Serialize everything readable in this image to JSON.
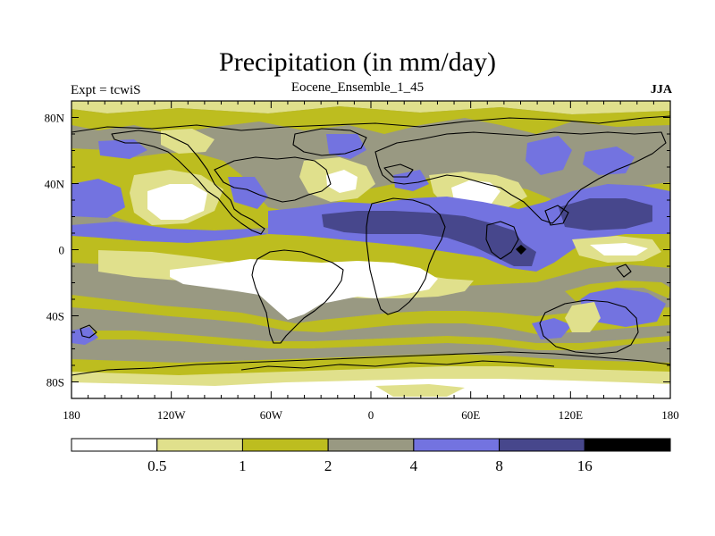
{
  "title": "Precipitation (in mm/day)",
  "left_label": "Expt = tcwiS",
  "center_label": "Eocene_Ensemble_1_45",
  "right_label": "JJA",
  "colors": {
    "lt05": "#ffffff",
    "c05_1": "#e0e08c",
    "c1_2": "#bdbd1f",
    "c2_4": "#999982",
    "c4_8": "#7373e0",
    "c8_16": "#47478c",
    "gt16": "#000000"
  },
  "map": {
    "lon_range": [
      -180,
      180
    ],
    "lat_range": [
      -90,
      90
    ],
    "x_ticks": [
      {
        "lon": -180,
        "label": "180"
      },
      {
        "lon": -120,
        "label": "120W"
      },
      {
        "lon": -60,
        "label": "60W"
      },
      {
        "lon": 0,
        "label": "0"
      },
      {
        "lon": 60,
        "label": "60E"
      },
      {
        "lon": 120,
        "label": "120E"
      },
      {
        "lon": 180,
        "label": "180"
      }
    ],
    "y_ticks": [
      {
        "lat": 80,
        "label": "80N"
      },
      {
        "lat": 40,
        "label": "40N"
      },
      {
        "lat": 0,
        "label": "0"
      },
      {
        "lat": -40,
        "label": "40S"
      },
      {
        "lat": -80,
        "label": "80S"
      }
    ]
  },
  "colorbar": {
    "levels": [
      {
        "label": "0.5"
      },
      {
        "label": "1"
      },
      {
        "label": "2"
      },
      {
        "label": "4"
      },
      {
        "label": "8"
      },
      {
        "label": "16"
      }
    ],
    "bins": [
      "lt05",
      "c05_1",
      "c1_2",
      "c2_4",
      "c4_8",
      "c8_16",
      "gt16"
    ]
  }
}
